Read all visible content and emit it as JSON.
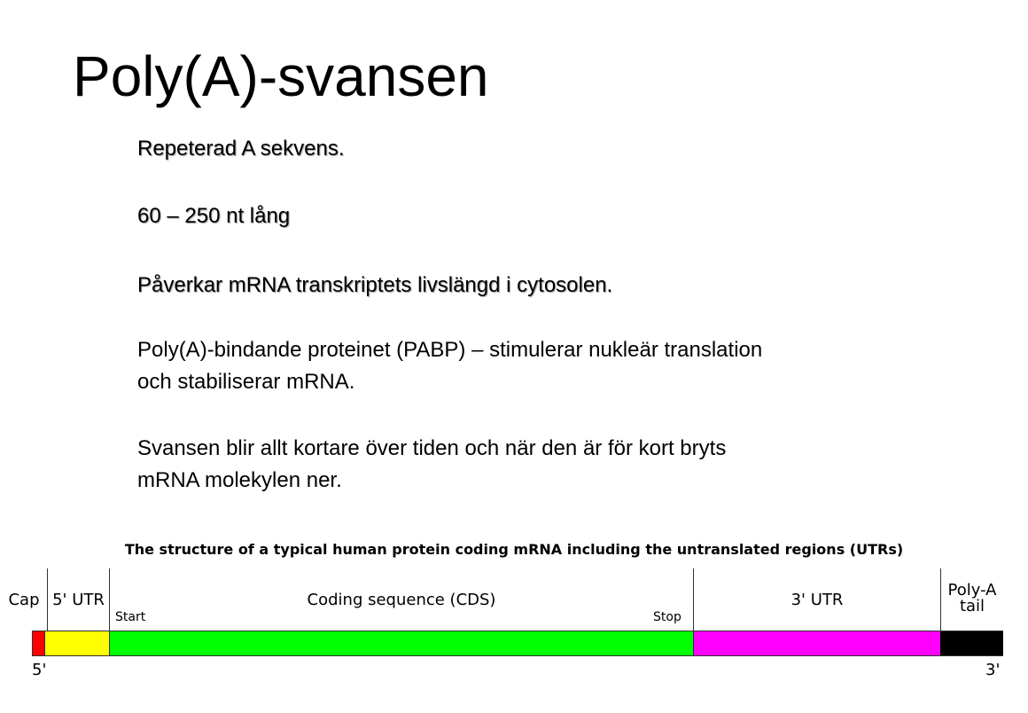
{
  "title": "Poly(A)-svansen",
  "paragraphs": [
    {
      "lines": [
        "Repeterad A sekvens."
      ]
    },
    {
      "lines": [
        "60 – 250 nt lång"
      ]
    },
    {
      "lines": [
        "Påverkar mRNA transkriptets livslängd i cytosolen."
      ]
    },
    {
      "lines": [
        "Poly(A)-bindande proteinet (PABP) – stimulerar nukleär translation",
        "och stabiliserar mRNA."
      ]
    },
    {
      "lines": [
        "Svansen blir allt kortare över tiden och när den är för kort bryts",
        "mRNA molekylen ner."
      ]
    }
  ],
  "diagram": {
    "title": "The structure of a typical human protein coding mRNA including the untranslated regions (UTRs)",
    "regions": [
      {
        "label": "Cap",
        "color": "#ff0000"
      },
      {
        "label": "5' UTR",
        "color": "#ffff00"
      },
      {
        "label": "Coding sequence (CDS)",
        "color": "#00ff00"
      },
      {
        "label": "3' UTR",
        "color": "#ff00ff"
      },
      {
        "label_line1": "Poly-A",
        "label_line2": "tail",
        "color": "#000000"
      }
    ],
    "start_label": "Start",
    "stop_label": "Stop",
    "five_prime": "5'",
    "three_prime": "3'"
  }
}
